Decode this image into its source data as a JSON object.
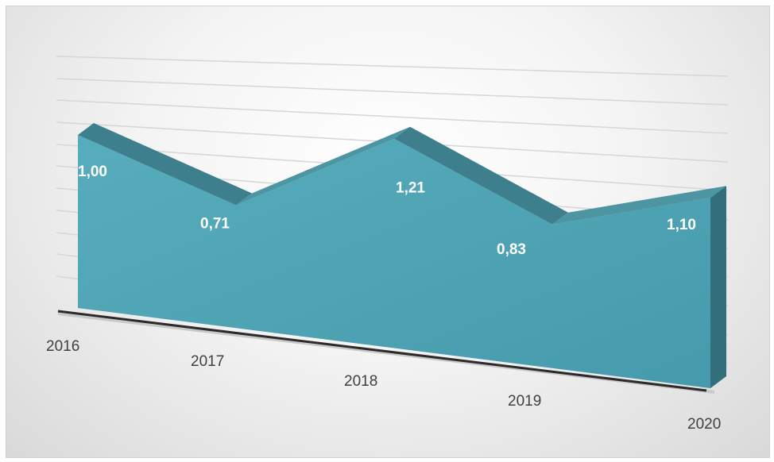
{
  "chart_data": {
    "type": "area",
    "three_d": true,
    "categories": [
      "2016",
      "2017",
      "2018",
      "2019",
      "2020"
    ],
    "series": [
      {
        "values": [
          1.0,
          0.71,
          1.21,
          0.83,
          1.1
        ],
        "value_labels": [
          "1,00",
          "0,71",
          "1,21",
          "0,83",
          "1,10"
        ],
        "color": "#4ea3b4"
      }
    ],
    "title": "",
    "xlabel": "",
    "ylabel": "",
    "grid": true,
    "legend": "none"
  }
}
